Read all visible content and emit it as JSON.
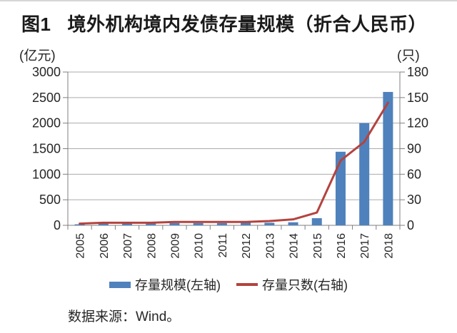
{
  "header": {
    "figure_label": "图1",
    "title": "境外机构境内发债存量规模（折合人民币）"
  },
  "chart_data": {
    "type": "bar+line combo",
    "categories": [
      "2005",
      "2006",
      "2007",
      "2008",
      "2009",
      "2010",
      "2011",
      "2012",
      "2013",
      "2014",
      "2015",
      "2016",
      "2017",
      "2018"
    ],
    "series": [
      {
        "name": "存量规模(左轴)",
        "type": "bar",
        "axis": "left",
        "color": "#4f81bd",
        "values": [
          20,
          40,
          40,
          40,
          45,
          45,
          45,
          50,
          50,
          60,
          140,
          1440,
          2000,
          2610
        ]
      },
      {
        "name": "存量只数(右轴)",
        "type": "line",
        "axis": "right",
        "color": "#b4433e",
        "values": [
          2,
          3,
          3,
          3,
          4,
          4,
          4,
          4,
          5,
          7,
          15,
          76,
          98,
          144
        ]
      }
    ],
    "left_axis": {
      "unit": "(亿元)",
      "min": 0,
      "max": 3000,
      "step": 500,
      "ticks": [
        0,
        500,
        1000,
        1500,
        2000,
        2500,
        3000
      ]
    },
    "right_axis": {
      "unit": "(只)",
      "min": 0,
      "max": 180,
      "step": 30,
      "ticks": [
        0,
        30,
        60,
        90,
        120,
        150,
        180
      ]
    },
    "grid": true,
    "legend_position": "bottom"
  },
  "footer": {
    "source": "数据来源：Wind。"
  },
  "style": {
    "grid_color": "#ababab",
    "axis_color": "#7f7f7f",
    "text_color": "#262626"
  }
}
